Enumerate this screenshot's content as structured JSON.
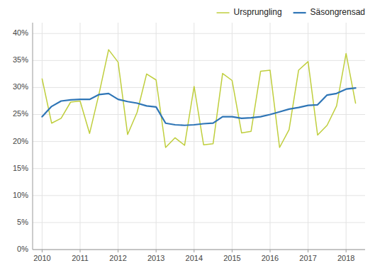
{
  "chart_data": {
    "type": "line",
    "x": [
      2010,
      2010.25,
      2010.5,
      2010.75,
      2011,
      2011.25,
      2011.5,
      2011.75,
      2012,
      2012.25,
      2012.5,
      2012.75,
      2013,
      2013.25,
      2013.5,
      2013.75,
      2014,
      2014.25,
      2014.5,
      2014.75,
      2015,
      2015.25,
      2015.5,
      2015.75,
      2016,
      2016.25,
      2016.5,
      2016.75,
      2017,
      2017.25,
      2017.5,
      2017.75,
      2018,
      2018.25
    ],
    "series": [
      {
        "name": "Ursprungling",
        "color": "#bfce3c",
        "values": [
          0.316,
          0.234,
          0.243,
          0.273,
          0.275,
          0.215,
          0.289,
          0.37,
          0.347,
          0.213,
          0.254,
          0.325,
          0.314,
          0.189,
          0.207,
          0.193,
          0.302,
          0.194,
          0.196,
          0.326,
          0.313,
          0.216,
          0.219,
          0.33,
          0.332,
          0.189,
          0.222,
          0.332,
          0.348,
          0.212,
          0.23,
          0.266,
          0.363,
          0.271
        ]
      },
      {
        "name": "Säsongrensad",
        "color": "#2e75b6",
        "values": [
          0.246,
          0.265,
          0.275,
          0.277,
          0.278,
          0.278,
          0.287,
          0.289,
          0.278,
          0.274,
          0.271,
          0.266,
          0.264,
          0.234,
          0.231,
          0.23,
          0.231,
          0.233,
          0.234,
          0.246,
          0.246,
          0.243,
          0.244,
          0.246,
          0.25,
          0.255,
          0.26,
          0.263,
          0.267,
          0.268,
          0.286,
          0.289,
          0.297,
          0.299
        ]
      }
    ],
    "xlim": [
      2009.75,
      2018.5
    ],
    "xticks": [
      2010,
      2011,
      2012,
      2013,
      2014,
      2015,
      2016,
      2017,
      2018
    ],
    "ylim": [
      0.0,
      0.42
    ],
    "yticks": [
      {
        "value": 0.0,
        "label": "0%"
      },
      {
        "value": 0.05,
        "label": "5%"
      },
      {
        "value": 0.1,
        "label": "10%"
      },
      {
        "value": 0.15,
        "label": "15%"
      },
      {
        "value": 0.2,
        "label": "20%"
      },
      {
        "value": 0.25,
        "label": "25%"
      },
      {
        "value": 0.3,
        "label": "30%"
      },
      {
        "value": 0.35,
        "label": "35%"
      },
      {
        "value": 0.4,
        "label": "40%"
      }
    ],
    "grid": true,
    "legend": "upper right"
  }
}
